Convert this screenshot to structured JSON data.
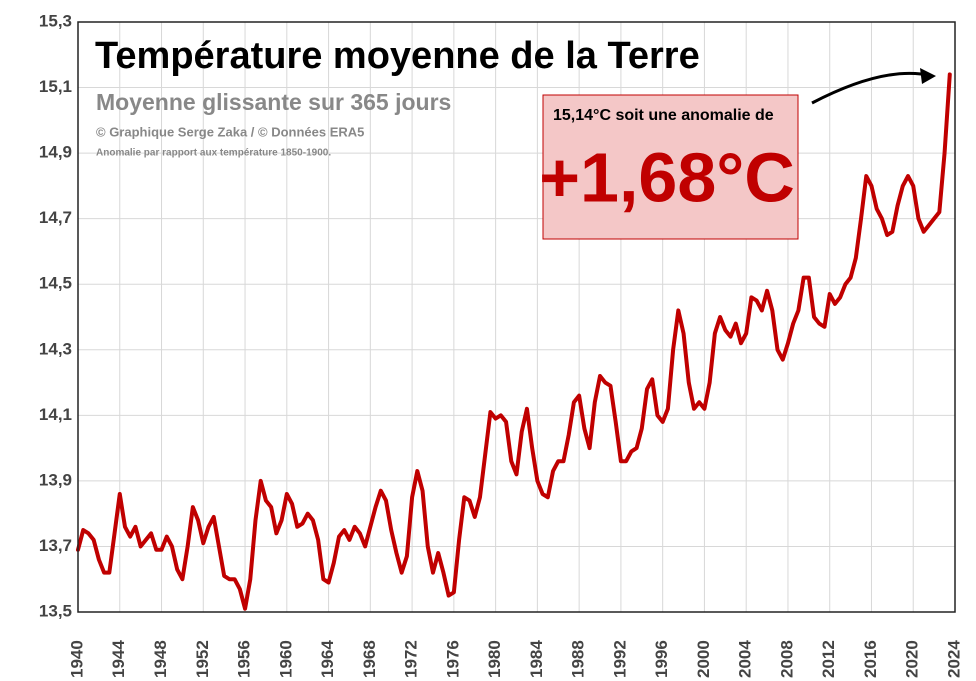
{
  "chart_data": {
    "type": "line",
    "title": "Température moyenne de la Terre",
    "subtitle": "Moyenne glissante sur 365 jours",
    "credits": "© Graphique Serge Zaka / © Données ERA5",
    "note": "Anomalie par rapport aux température 1850-1900.",
    "annotation": {
      "text": "15,14°C soit une anomalie de",
      "highlight": "+1,68°C"
    },
    "grid": true,
    "xlim": [
      1940,
      2024
    ],
    "xticks": [
      1940,
      1944,
      1948,
      1952,
      1956,
      1960,
      1964,
      1968,
      1972,
      1976,
      1980,
      1984,
      1988,
      1992,
      1996,
      2000,
      2004,
      2008,
      2012,
      2016,
      2020,
      2024
    ],
    "ylim": [
      13.5,
      15.3
    ],
    "yticks": [
      {
        "value": 13.5,
        "label": "13,5"
      },
      {
        "value": 13.7,
        "label": "13,7"
      },
      {
        "value": 13.9,
        "label": "13,9"
      },
      {
        "value": 14.1,
        "label": "14,1"
      },
      {
        "value": 14.3,
        "label": "14,3"
      },
      {
        "value": 14.5,
        "label": "14,5"
      },
      {
        "value": 14.7,
        "label": "14,7"
      },
      {
        "value": 14.9,
        "label": "14,9"
      },
      {
        "value": 15.1,
        "label": "15,1"
      },
      {
        "value": 15.3,
        "label": "15,3"
      }
    ],
    "x": [
      1940,
      1940.5,
      1941,
      1941.5,
      1942,
      1942.5,
      1943,
      1943.5,
      1944,
      1944.5,
      1945,
      1945.5,
      1946,
      1946.5,
      1947,
      1947.5,
      1948,
      1948.5,
      1949,
      1949.5,
      1950,
      1950.5,
      1951,
      1951.5,
      1952,
      1952.5,
      1953,
      1953.5,
      1954,
      1954.5,
      1955,
      1955.5,
      1956,
      1956.5,
      1957,
      1957.5,
      1958,
      1958.5,
      1959,
      1959.5,
      1960,
      1960.5,
      1961,
      1961.5,
      1962,
      1962.5,
      1963,
      1963.5,
      1964,
      1964.5,
      1965,
      1965.5,
      1966,
      1966.5,
      1967,
      1967.5,
      1968,
      1968.5,
      1969,
      1969.5,
      1970,
      1970.5,
      1971,
      1971.5,
      1972,
      1972.5,
      1973,
      1973.5,
      1974,
      1974.5,
      1975,
      1975.5,
      1976,
      1976.5,
      1977,
      1977.5,
      1978,
      1978.5,
      1979,
      1979.5,
      1980,
      1980.5,
      1981,
      1981.5,
      1982,
      1982.5,
      1983,
      1983.5,
      1984,
      1984.5,
      1985,
      1985.5,
      1986,
      1986.5,
      1987,
      1987.5,
      1988,
      1988.5,
      1989,
      1989.5,
      1990,
      1990.5,
      1991,
      1991.5,
      1992,
      1992.5,
      1993,
      1993.5,
      1994,
      1994.5,
      1995,
      1995.5,
      1996,
      1996.5,
      1997,
      1997.5,
      1998,
      1998.5,
      1999,
      1999.5,
      2000,
      2000.5,
      2001,
      2001.5,
      2002,
      2002.5,
      2003,
      2003.5,
      2004,
      2004.5,
      2005,
      2005.5,
      2006,
      2006.5,
      2007,
      2007.5,
      2008,
      2008.5,
      2009,
      2009.5,
      2010,
      2010.5,
      2011,
      2011.5,
      2012,
      2012.5,
      2013,
      2013.5,
      2014,
      2014.5,
      2015,
      2015.5,
      2016,
      2016.5,
      2017,
      2017.5,
      2018,
      2018.5,
      2019,
      2019.5,
      2020,
      2020.5,
      2021,
      2021.5,
      2022,
      2022.5,
      2023,
      2023.5
    ],
    "series": [
      {
        "name": "Température",
        "color": "#c00000",
        "values": [
          13.69,
          13.75,
          13.74,
          13.72,
          13.66,
          13.62,
          13.62,
          13.74,
          13.86,
          13.76,
          13.73,
          13.76,
          13.7,
          13.72,
          13.74,
          13.69,
          13.69,
          13.73,
          13.7,
          13.63,
          13.6,
          13.7,
          13.82,
          13.78,
          13.71,
          13.76,
          13.79,
          13.7,
          13.61,
          13.6,
          13.6,
          13.57,
          13.51,
          13.6,
          13.78,
          13.9,
          13.84,
          13.82,
          13.74,
          13.78,
          13.86,
          13.83,
          13.76,
          13.77,
          13.8,
          13.78,
          13.72,
          13.6,
          13.59,
          13.65,
          13.73,
          13.75,
          13.72,
          13.76,
          13.74,
          13.7,
          13.76,
          13.82,
          13.87,
          13.84,
          13.75,
          13.68,
          13.62,
          13.67,
          13.85,
          13.93,
          13.87,
          13.7,
          13.62,
          13.68,
          13.62,
          13.55,
          13.56,
          13.72,
          13.85,
          13.84,
          13.79,
          13.85,
          13.98,
          14.11,
          14.09,
          14.1,
          14.08,
          13.96,
          13.92,
          14.05,
          14.12,
          14.0,
          13.9,
          13.86,
          13.85,
          13.93,
          13.96,
          13.96,
          14.04,
          14.14,
          14.16,
          14.06,
          14.0,
          14.14,
          14.22,
          14.2,
          14.19,
          14.08,
          13.96,
          13.96,
          13.99,
          14.0,
          14.06,
          14.18,
          14.21,
          14.1,
          14.08,
          14.12,
          14.3,
          14.42,
          14.35,
          14.2,
          14.12,
          14.14,
          14.12,
          14.2,
          14.35,
          14.4,
          14.36,
          14.34,
          14.38,
          14.32,
          14.35,
          14.46,
          14.45,
          14.42,
          14.48,
          14.42,
          14.3,
          14.27,
          14.32,
          14.38,
          14.42,
          14.52,
          14.52,
          14.4,
          14.38,
          14.37,
          14.47,
          14.44,
          14.46,
          14.5,
          14.52,
          14.58,
          14.7,
          14.83,
          14.8,
          14.73,
          14.7,
          14.65,
          14.66,
          14.74,
          14.8,
          14.83,
          14.8,
          14.7,
          14.66,
          14.68,
          14.7,
          14.72,
          14.9,
          15.14
        ]
      }
    ]
  }
}
